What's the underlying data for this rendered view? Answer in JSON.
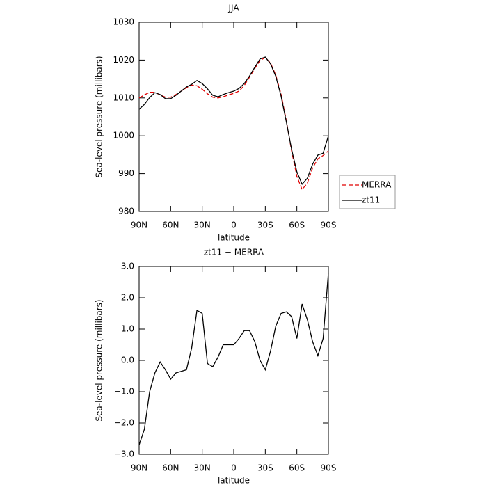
{
  "chart_data": [
    {
      "type": "line",
      "title": "JJA",
      "xlabel": "latitude",
      "ylabel": "Sea-level pressure (millibars)",
      "x": [
        90,
        85,
        80,
        75,
        70,
        65,
        60,
        55,
        50,
        45,
        40,
        35,
        30,
        25,
        20,
        15,
        10,
        5,
        0,
        -5,
        -10,
        -15,
        -20,
        -25,
        -30,
        -35,
        -40,
        -45,
        -50,
        -55,
        -60,
        -65,
        -70,
        -75,
        -80,
        -85,
        -90
      ],
      "series": [
        {
          "name": "MERRA",
          "color": "#e00000",
          "dash": true,
          "values": [
            1010,
            1010.8,
            1011.5,
            1011.5,
            1010.8,
            1010.2,
            1010.2,
            1010.9,
            1011.8,
            1012.7,
            1013.4,
            1013.2,
            1012.3,
            1011.1,
            1010.2,
            1010.0,
            1010.3,
            1010.8,
            1011.2,
            1011.8,
            1013.3,
            1015.5,
            1017.8,
            1019.9,
            1020.7,
            1019.2,
            1016.0,
            1011.0,
            1004.0,
            996.0,
            989.3,
            985.8,
            987.5,
            991.5,
            993.9,
            994.8,
            996.0
          ]
        },
        {
          "name": "zt11",
          "color": "#000000",
          "dash": false,
          "values": [
            1007.0,
            1008.3,
            1010.1,
            1011.4,
            1010.9,
            1009.8,
            1009.8,
            1010.7,
            1011.8,
            1012.9,
            1013.6,
            1014.6,
            1013.8,
            1012.4,
            1010.7,
            1010.3,
            1010.9,
            1011.4,
            1011.8,
            1012.5,
            1013.8,
            1015.8,
            1018.1,
            1020.3,
            1020.8,
            1019.0,
            1015.7,
            1010.5,
            1003.7,
            996.4,
            990.5,
            987.2,
            988.8,
            992.5,
            994.9,
            995.4,
            1000.0
          ]
        }
      ],
      "xlim": [
        90,
        -90
      ],
      "xticks": [
        {
          "value": 90,
          "label": "90N"
        },
        {
          "value": 60,
          "label": "60N"
        },
        {
          "value": 30,
          "label": "30N"
        },
        0,
        {
          "value": -30,
          "label": "30S"
        },
        {
          "value": -60,
          "label": "60S"
        },
        {
          "value": -90,
          "label": "90S"
        }
      ],
      "ylim": [
        980,
        1030
      ],
      "yticks": [
        980,
        990,
        1000,
        1010,
        1020,
        1030
      ],
      "legend": "outside-right"
    },
    {
      "type": "line",
      "title": "zt11 − MERRA",
      "xlabel": "latitude",
      "ylabel": "Sea-level pressure (millibars)",
      "x": [
        90,
        85,
        80,
        75,
        70,
        65,
        60,
        55,
        50,
        45,
        40,
        35,
        30,
        25,
        20,
        15,
        10,
        5,
        0,
        -5,
        -10,
        -15,
        -20,
        -25,
        -30,
        -35,
        -40,
        -45,
        -50,
        -55,
        -60,
        -65,
        -70,
        -75,
        -80,
        -85,
        -90
      ],
      "series": [
        {
          "color": "#000000",
          "dash": false,
          "values": [
            -2.7,
            -2.2,
            -1.0,
            -0.4,
            -0.05,
            -0.3,
            -0.6,
            -0.4,
            -0.35,
            -0.3,
            0.4,
            1.6,
            1.5,
            -0.1,
            -0.2,
            0.1,
            0.5,
            0.5,
            0.5,
            0.7,
            0.95,
            0.95,
            0.6,
            0.0,
            -0.3,
            0.3,
            1.1,
            1.5,
            1.55,
            1.4,
            0.7,
            1.8,
            1.3,
            0.6,
            0.15,
            0.7,
            2.8
          ]
        }
      ],
      "xlim": [
        90,
        -90
      ],
      "xticks": [
        {
          "value": 90,
          "label": "90N"
        },
        {
          "value": 60,
          "label": "60N"
        },
        {
          "value": 30,
          "label": "30N"
        },
        0,
        {
          "value": -30,
          "label": "30S"
        },
        {
          "value": -60,
          "label": "60S"
        },
        {
          "value": -90,
          "label": "90S"
        }
      ],
      "ylim": [
        -3,
        3
      ],
      "yticks": [
        {
          "value": -3,
          "label": "−3.0"
        },
        {
          "value": -2,
          "label": "−2.0"
        },
        {
          "value": -1,
          "label": "−1.0"
        },
        {
          "value": 0,
          "label": "0.0"
        },
        {
          "value": 1,
          "label": "1.0"
        },
        {
          "value": 2,
          "label": "2.0"
        },
        {
          "value": 3,
          "label": "3.0"
        }
      ]
    }
  ]
}
